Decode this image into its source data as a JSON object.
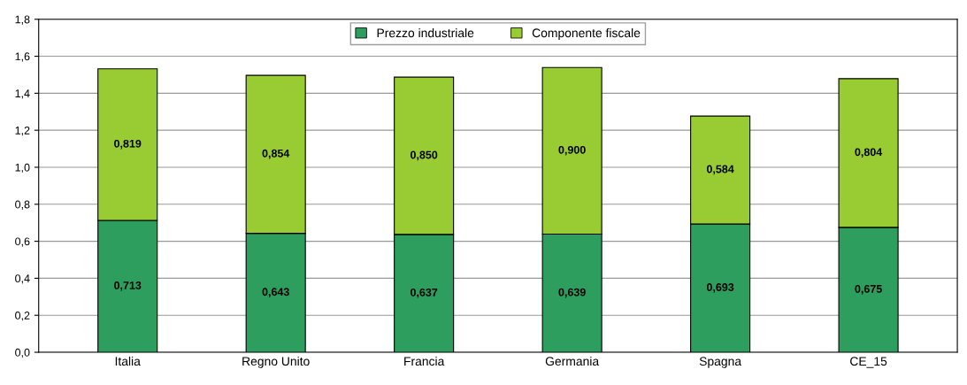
{
  "chart_data": {
    "type": "bar",
    "stacked": true,
    "categories": [
      "Italia",
      "Regno Unito",
      "Francia",
      "Germania",
      "Spagna",
      "CE_15"
    ],
    "series": [
      {
        "name": "Prezzo industriale",
        "color": "#2e9e5e",
        "values": [
          0.713,
          0.643,
          0.637,
          0.639,
          0.693,
          0.675
        ],
        "value_labels": [
          "0,713",
          "0,643",
          "0,637",
          "0,639",
          "0,693",
          "0,675"
        ]
      },
      {
        "name": "Componente fiscale",
        "color": "#99cc33",
        "values": [
          0.819,
          0.854,
          0.85,
          0.9,
          0.584,
          0.804
        ],
        "value_labels": [
          "0,819",
          "0,854",
          "0,850",
          "0,900",
          "0,584",
          "0,804"
        ]
      }
    ],
    "ylim": [
      0,
      1.8
    ],
    "yticks": [
      {
        "value": 0,
        "label": "0,0"
      },
      {
        "value": 0.2,
        "label": "0,2"
      },
      {
        "value": 0.4,
        "label": "0,4"
      },
      {
        "value": 0.6,
        "label": "0,6"
      },
      {
        "value": 0.8,
        "label": "0,8"
      },
      {
        "value": 1.0,
        "label": "1,0"
      },
      {
        "value": 1.2,
        "label": "1,2"
      },
      {
        "value": 1.4,
        "label": "1,4"
      },
      {
        "value": 1.6,
        "label": "1,6"
      },
      {
        "value": 1.8,
        "label": "1,8"
      }
    ],
    "grid": "y",
    "legend": "top"
  }
}
